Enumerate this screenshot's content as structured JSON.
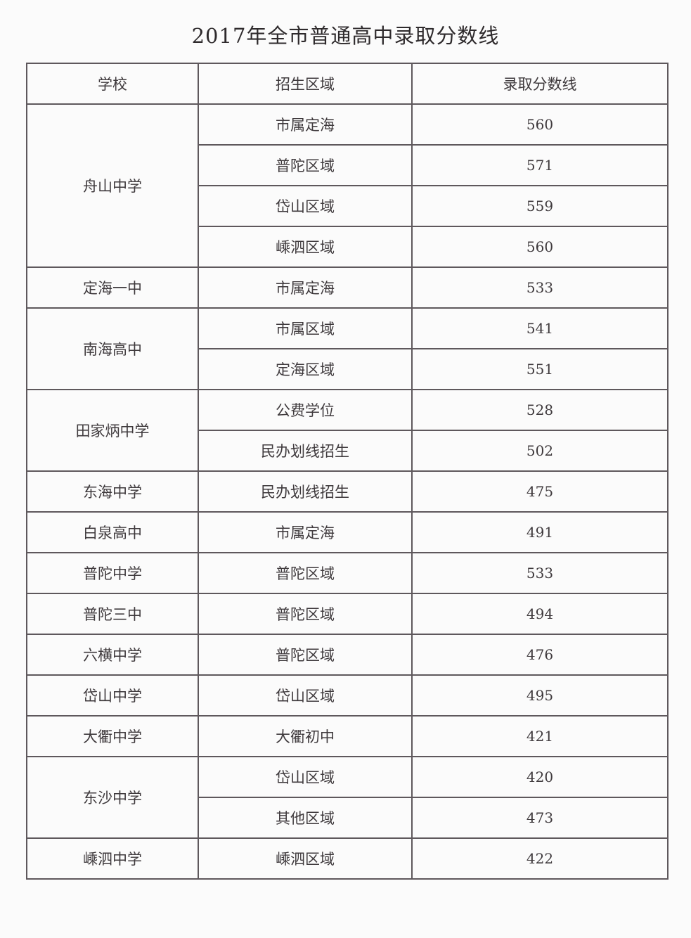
{
  "title": "2017年全市普通高中录取分数线",
  "columns": [
    "学校",
    "招生区域",
    "录取分数线"
  ],
  "groups": [
    {
      "school": "舟山中学",
      "rows": [
        {
          "region": "市属定海",
          "score": "560"
        },
        {
          "region": "普陀区域",
          "score": "571"
        },
        {
          "region": "岱山区域",
          "score": "559"
        },
        {
          "region": "嵊泗区域",
          "score": "560"
        }
      ]
    },
    {
      "school": "定海一中",
      "rows": [
        {
          "region": "市属定海",
          "score": "533"
        }
      ]
    },
    {
      "school": "南海高中",
      "rows": [
        {
          "region": "市属区域",
          "score": "541"
        },
        {
          "region": "定海区域",
          "score": "551"
        }
      ]
    },
    {
      "school": "田家炳中学",
      "rows": [
        {
          "region": "公费学位",
          "score": "528"
        },
        {
          "region": "民办划线招生",
          "score": "502"
        }
      ]
    },
    {
      "school": "东海中学",
      "rows": [
        {
          "region": "民办划线招生",
          "score": "475"
        }
      ]
    },
    {
      "school": "白泉高中",
      "rows": [
        {
          "region": "市属定海",
          "score": "491"
        }
      ]
    },
    {
      "school": "普陀中学",
      "rows": [
        {
          "region": "普陀区域",
          "score": "533"
        }
      ]
    },
    {
      "school": "普陀三中",
      "rows": [
        {
          "region": "普陀区域",
          "score": "494"
        }
      ]
    },
    {
      "school": "六横中学",
      "rows": [
        {
          "region": "普陀区域",
          "score": "476"
        }
      ]
    },
    {
      "school": "岱山中学",
      "rows": [
        {
          "region": "岱山区域",
          "score": "495"
        }
      ]
    },
    {
      "school": "大衢中学",
      "rows": [
        {
          "region": "大衢初中",
          "score": "421"
        }
      ]
    },
    {
      "school": "东沙中学",
      "rows": [
        {
          "region": "岱山区域",
          "score": "420"
        },
        {
          "region": "其他区域",
          "score": "473"
        }
      ]
    },
    {
      "school": "嵊泗中学",
      "rows": [
        {
          "region": "嵊泗区域",
          "score": "422"
        }
      ]
    }
  ]
}
